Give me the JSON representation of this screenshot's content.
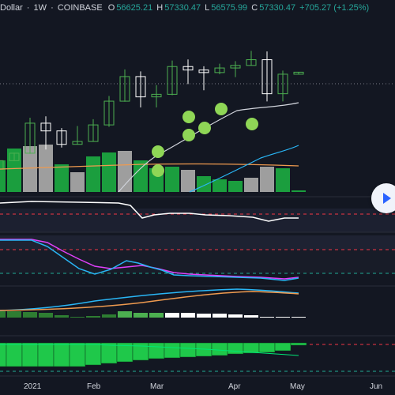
{
  "header": {
    "pair": "Dollar",
    "sep1": "·",
    "interval": "1W",
    "sep2": "·",
    "exchange": "COINBASE",
    "open_label": "O",
    "open": "56625.21",
    "high_label": "H",
    "high": "57330.47",
    "low_label": "L",
    "low": "56575.99",
    "close_label": "C",
    "close": "57330.47",
    "change": "+705.27 (+1.25%)"
  },
  "x_axis": {
    "labels": [
      "2021",
      "Feb",
      "Mar",
      "Apr",
      "May",
      "Jun"
    ]
  },
  "colors": {
    "background": "#131722",
    "up": "#4caf50",
    "down": "#ffffff",
    "volume_up": "#1b9e3e",
    "volume_down": "#9e9e9e",
    "signal_dots": "#8fd656",
    "ma_white": "#ffffff",
    "ma_cyan": "#29b6f6",
    "ma_orange": "#ef9a4f",
    "pink": "#e040fb",
    "red_dashed": "#f23645",
    "green_dashed": "#22ab94"
  },
  "icons": {
    "play": "play-icon"
  },
  "chart_data": {
    "type": "candlestick",
    "title": "",
    "x": [
      "2020-12-14",
      "2020-12-21",
      "2020-12-28",
      "2021-01-04",
      "2021-01-11",
      "2021-01-18",
      "2021-01-25",
      "2021-02-01",
      "2021-02-08",
      "2021-02-15",
      "2021-02-22",
      "2021-03-01",
      "2021-03-08",
      "2021-03-15",
      "2021-03-22",
      "2021-03-29",
      "2021-04-05",
      "2021-04-12",
      "2021-04-19",
      "2021-04-26",
      "2021-05-03"
    ],
    "open": [
      19200,
      23400,
      26400,
      29000,
      39500,
      36800,
      32100,
      33100,
      38900,
      47200,
      55800,
      48700,
      49600,
      59300,
      58100,
      57200,
      58800,
      59700,
      61700,
      49800,
      56625.21
    ],
    "high": [
      23700,
      26700,
      29200,
      41400,
      41900,
      37800,
      38500,
      40900,
      49000,
      58300,
      57600,
      52800,
      61400,
      61800,
      59400,
      60300,
      61200,
      64800,
      64600,
      57900,
      57330.47
    ],
    "low": [
      19000,
      23200,
      26300,
      28800,
      30300,
      31000,
      32000,
      33000,
      38200,
      47000,
      45000,
      45000,
      49300,
      53200,
      51000,
      56600,
      55600,
      59600,
      47100,
      47100,
      56575.99
    ],
    "close": [
      23400,
      26400,
      29000,
      39500,
      36800,
      32100,
      33100,
      38900,
      47200,
      55800,
      48700,
      49600,
      59300,
      58100,
      57200,
      58800,
      59700,
      61700,
      49800,
      56625.21,
      57330.47
    ],
    "volume_colors": [
      "up",
      "up",
      "up",
      "down",
      "down",
      "up",
      "down",
      "up",
      "up",
      "down",
      "up",
      "up",
      "up",
      "down",
      "up",
      "up",
      "up",
      "down",
      "down",
      "up",
      "up"
    ]
  }
}
